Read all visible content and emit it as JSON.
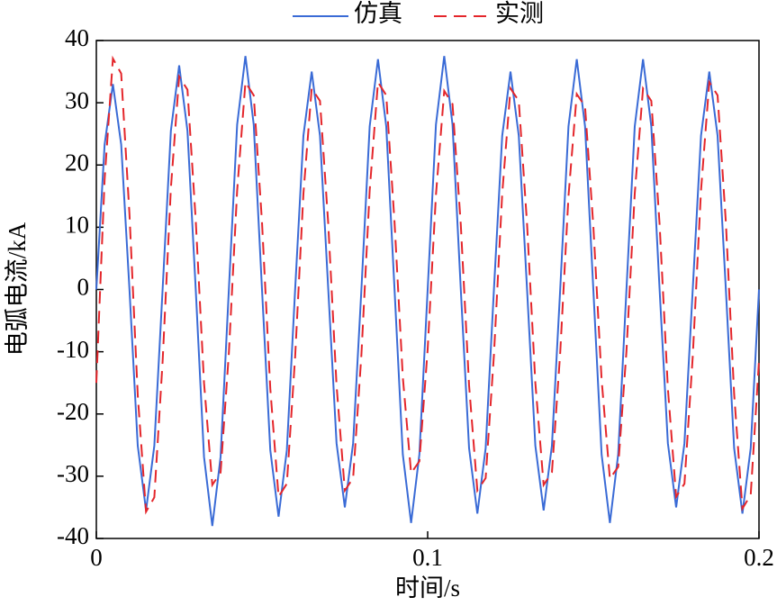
{
  "chart_data": {
    "type": "line",
    "xlabel": "时间/s",
    "ylabel": "电弧电流/kA",
    "x": [
      0,
      0.0025,
      0.005,
      0.0075,
      0.01,
      0.0125,
      0.015,
      0.0175,
      0.02,
      0.0225,
      0.025,
      0.0275,
      0.03,
      0.0325,
      0.035,
      0.0375,
      0.04,
      0.0425,
      0.045,
      0.0475,
      0.05,
      0.0525,
      0.055,
      0.0575,
      0.06,
      0.0625,
      0.065,
      0.0675,
      0.07,
      0.0725,
      0.075,
      0.0775,
      0.08,
      0.0825,
      0.085,
      0.0875,
      0.09,
      0.0925,
      0.095,
      0.0975,
      0.1,
      0.1025,
      0.105,
      0.1075,
      0.11,
      0.1125,
      0.115,
      0.1175,
      0.12,
      0.1225,
      0.125,
      0.1275,
      0.13,
      0.1325,
      0.135,
      0.1375,
      0.14,
      0.1425,
      0.145,
      0.1475,
      0.15,
      0.1525,
      0.155,
      0.1575,
      0.16,
      0.1625,
      0.165,
      0.1675,
      0.17,
      0.1725,
      0.175,
      0.1775,
      0.18,
      0.1825,
      0.185,
      0.1875,
      0.19,
      0.1925,
      0.195,
      0.1975,
      0.2
    ],
    "series": [
      {
        "name": "仿真",
        "color": "#3a6bd6",
        "style": "solid",
        "values": [
          0,
          23.3,
          33,
          23.3,
          0,
          -25.1,
          -35.5,
          -25.1,
          0,
          25.5,
          36,
          25.5,
          0,
          -26.9,
          -38,
          -26.9,
          0,
          26.5,
          37.5,
          26.5,
          0,
          -25.8,
          -36.5,
          -25.8,
          0,
          24.7,
          35,
          24.7,
          0,
          -24.7,
          -35,
          -24.7,
          0,
          26.2,
          37,
          26.2,
          0,
          -26.5,
          -37.5,
          -26.5,
          0,
          26.5,
          37.5,
          26.5,
          0,
          -25.5,
          -36,
          -25.5,
          0,
          24.7,
          35,
          24.7,
          0,
          -25.1,
          -35.5,
          -25.1,
          0,
          26.2,
          37,
          26.2,
          0,
          -26.5,
          -37.5,
          -26.5,
          0,
          26.2,
          37,
          26.2,
          0,
          -24.7,
          -35,
          -24.7,
          0,
          24.7,
          35,
          24.7,
          0,
          -25.5,
          -36,
          -25.5,
          0
        ]
      },
      {
        "name": "实测",
        "color": "#e4262b",
        "style": "dashed",
        "values": [
          -15,
          17.7,
          37.1,
          34.7,
          12.1,
          -17.0,
          -35.7,
          -33.4,
          -11.6,
          16.3,
          34.2,
          32.1,
          11.1,
          -15.0,
          -31.4,
          -29.4,
          -10.2,
          15.9,
          33.3,
          31.2,
          10.8,
          -15.9,
          -33.3,
          -31.2,
          -10.8,
          15.4,
          32.3,
          30.3,
          10.5,
          -15.4,
          -32.3,
          -30.3,
          -10.5,
          15.9,
          33.3,
          31.2,
          10.8,
          -14.1,
          -29.5,
          -27.6,
          -9.6,
          15.2,
          31.9,
          29.8,
          10.4,
          -15.4,
          -32.3,
          -30.3,
          -10.5,
          15.4,
          32.3,
          30.3,
          10.5,
          -15.0,
          -31.4,
          -29.4,
          -10.2,
          15.0,
          31.4,
          29.4,
          10.2,
          -14.5,
          -30.4,
          -28.5,
          -9.9,
          15.4,
          32.3,
          30.3,
          10.5,
          -15.9,
          -33.3,
          -31.2,
          -10.8,
          15.9,
          33.3,
          31.2,
          10.8,
          -16.8,
          -35.2,
          -33.0,
          -11.4
        ]
      }
    ],
    "xlim": [
      0,
      0.2
    ],
    "xticks": [
      0,
      0.1,
      0.2
    ],
    "ylim": [
      -40,
      40
    ],
    "yticks": [
      -40,
      -30,
      -20,
      -10,
      0,
      10,
      20,
      30,
      40
    ],
    "legend": "top"
  }
}
